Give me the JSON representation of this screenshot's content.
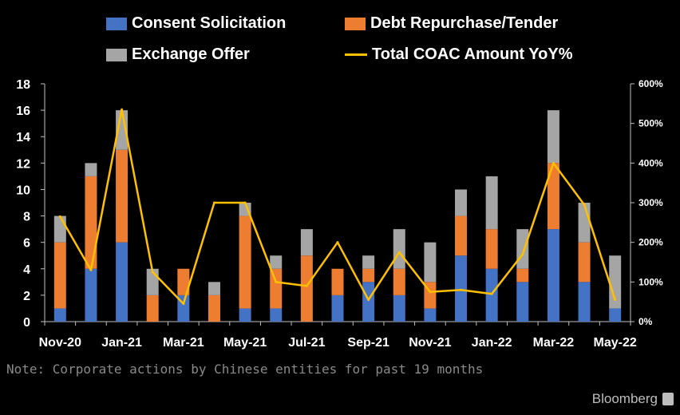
{
  "legend": {
    "consent": "Consent Solicitation",
    "debt": "Debt Repurchase/Tender",
    "exchange": "Exchange Offer",
    "yoy": "Total COAC Amount YoY%"
  },
  "colors": {
    "consent": "#4472C4",
    "debt": "#ED7D31",
    "exchange": "#A5A5A5",
    "yoy": "#FFC000",
    "background": "#000000"
  },
  "note": "Note: Corporate actions by Chinese entities for past 19 months",
  "brand": "Bloomberg",
  "chart_data": {
    "type": "bar",
    "stacked": true,
    "categories": [
      "Nov-20",
      "Dec-20",
      "Jan-21",
      "Feb-21",
      "Mar-21",
      "Apr-21",
      "May-21",
      "Jun-21",
      "Jul-21",
      "Aug-21",
      "Sep-21",
      "Oct-21",
      "Nov-21",
      "Dec-21",
      "Jan-22",
      "Feb-22",
      "Mar-22",
      "Apr-22",
      "May-22"
    ],
    "x_tick_labels": [
      "Nov-20",
      "Jan-21",
      "Mar-21",
      "May-21",
      "Jul-21",
      "Sep-21",
      "Nov-21",
      "Jan-22",
      "Mar-22",
      "May-22"
    ],
    "series": [
      {
        "name": "Consent Solicitation",
        "key": "consent",
        "values": [
          1,
          4,
          6,
          0,
          2,
          0,
          1,
          1,
          0,
          2,
          3,
          2,
          1,
          5,
          4,
          3,
          7,
          3,
          1
        ]
      },
      {
        "name": "Debt Repurchase/Tender",
        "key": "debt",
        "values": [
          5,
          7,
          7,
          2,
          2,
          2,
          7,
          3,
          5,
          2,
          1,
          2,
          2,
          3,
          3,
          1,
          5,
          3,
          0
        ]
      },
      {
        "name": "Exchange Offer",
        "key": "exchange",
        "values": [
          2,
          1,
          3,
          2,
          0,
          1,
          1,
          1,
          2,
          0,
          1,
          3,
          3,
          2,
          4,
          3,
          4,
          3,
          4
        ]
      }
    ],
    "line_series": {
      "name": "Total COAC Amount YoY%",
      "axis": "right",
      "values": [
        265,
        130,
        535,
        125,
        45,
        300,
        300,
        100,
        90,
        200,
        55,
        175,
        75,
        80,
        70,
        170,
        400,
        295,
        55
      ]
    },
    "y_left": {
      "ylim": [
        0,
        18
      ],
      "ticks": [
        "0",
        "2",
        "4",
        "6",
        "8",
        "10",
        "12",
        "14",
        "16",
        "18"
      ]
    },
    "y_right": {
      "ylim": [
        0,
        600
      ],
      "ticks": [
        "0%",
        "100%",
        "200%",
        "300%",
        "400%",
        "500%",
        "600%"
      ]
    },
    "grid": false,
    "legend_position": "top"
  }
}
